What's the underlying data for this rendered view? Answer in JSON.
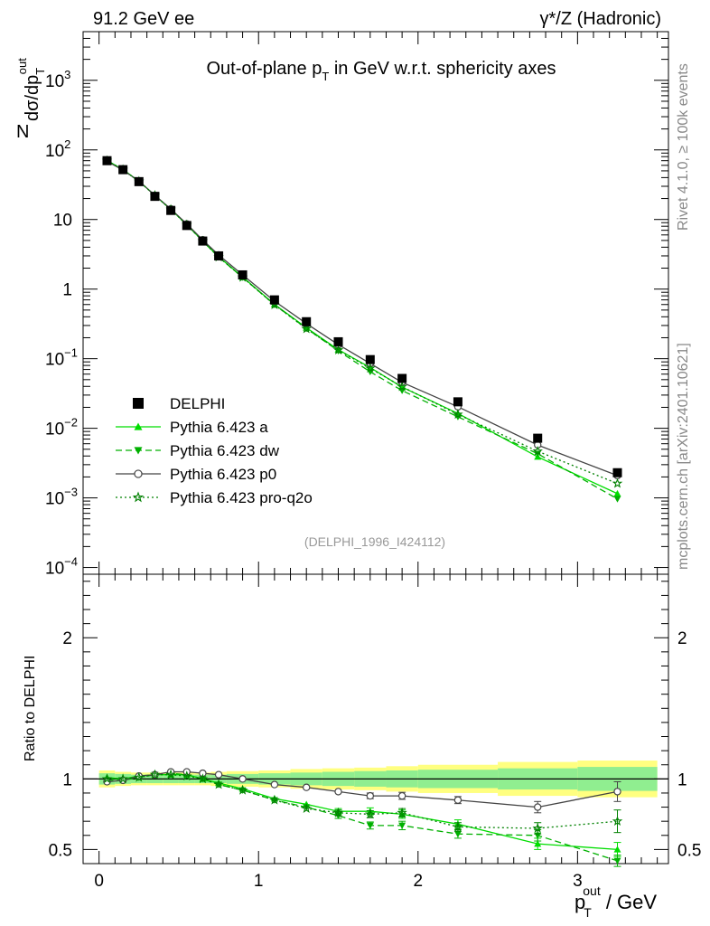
{
  "header": {
    "left": "91.2 GeV ee",
    "right": "γ*/Z (Hadronic)"
  },
  "side": {
    "rivet": "Rivet 4.1.0, ≥ 100k events",
    "mcplots": "mcplots.cern.ch [arXiv:2401.10621]"
  },
  "main": {
    "title_main": "Out-of-plane p",
    "title_sub": "T",
    "title_rest": " in GeV w.r.t. sphericity axes",
    "ylabel_n": "N",
    "ylabel_main": "dσ/dp",
    "ylabel_sub": "T",
    "ylabel_sup": "out",
    "watermark": "(DELPHI_1996_I424112)",
    "ytick_plain": [
      "1",
      "10"
    ],
    "ytick_base": "10",
    "ytick_exps": [
      "−4",
      "−3",
      "−2",
      "−1",
      "2",
      "3"
    ]
  },
  "ratio": {
    "ylabel": "Ratio to DELPHI",
    "ticks": [
      "0.5",
      "1",
      "2"
    ]
  },
  "xaxis": {
    "label_p": "p",
    "label_sub": "T",
    "label_sup": "out",
    "label_rest": " / GeV",
    "ticks": [
      "0",
      "1",
      "2",
      "3"
    ]
  },
  "legend": [
    {
      "label": "DELPHI",
      "marker": "square",
      "color": "#000000"
    },
    {
      "label": "Pythia 6.423 a",
      "marker": "triangle-up",
      "color": "#00dd00"
    },
    {
      "label": "Pythia 6.423 dw",
      "marker": "triangle-down",
      "color": "#00b000"
    },
    {
      "label": "Pythia 6.423 p0",
      "marker": "circle-open",
      "color": "#444444"
    },
    {
      "label": "Pythia 6.423 pro-q2o",
      "marker": "star",
      "color": "#008000"
    }
  ],
  "chart_data": {
    "type": "scatter",
    "title": "Out-of-plane pT in GeV w.r.t. sphericity axes",
    "xlabel": "pT^out / GeV",
    "ylabel": "N dσ/dpT^out",
    "ratio_ylabel": "Ratio to DELPHI",
    "xlim": [
      -0.1,
      3.57
    ],
    "ylim_log": [
      8e-05,
      5000
    ],
    "ratio_ylim": [
      0.4,
      2.45
    ],
    "x": [
      0.05,
      0.15,
      0.25,
      0.35,
      0.45,
      0.55,
      0.65,
      0.75,
      0.9,
      1.1,
      1.3,
      1.5,
      1.7,
      1.9,
      2.25,
      2.75,
      3.25
    ],
    "data": {
      "name": "DELPHI",
      "values": [
        70,
        52,
        35,
        21.5,
        13.5,
        8.2,
        4.9,
        3.0,
        1.6,
        0.7,
        0.34,
        0.175,
        0.097,
        0.052,
        0.024,
        0.0072,
        0.0023
      ]
    },
    "band_edges": [
      0,
      0.1,
      0.2,
      0.3,
      0.4,
      0.5,
      0.6,
      0.7,
      0.8,
      1.0,
      1.2,
      1.4,
      1.6,
      1.8,
      2.0,
      2.5,
      3.0,
      3.5
    ],
    "band_inner": [
      0.04,
      0.035,
      0.03,
      0.03,
      0.03,
      0.03,
      0.03,
      0.03,
      0.035,
      0.04,
      0.045,
      0.05,
      0.055,
      0.06,
      0.065,
      0.075,
      0.085
    ],
    "band_outer": [
      0.06,
      0.05,
      0.045,
      0.045,
      0.045,
      0.045,
      0.045,
      0.05,
      0.055,
      0.06,
      0.07,
      0.075,
      0.08,
      0.09,
      0.1,
      0.12,
      0.13
    ],
    "series": [
      {
        "name": "Pythia 6.423 a",
        "ratio": [
          1.01,
          1.0,
          1.02,
          1.03,
          1.03,
          1.03,
          1.0,
          0.97,
          0.93,
          0.86,
          0.82,
          0.77,
          0.77,
          0.75,
          0.68,
          0.54,
          0.5
        ],
        "ratio_err": [
          0.01,
          0.01,
          0.01,
          0.01,
          0.01,
          0.01,
          0.01,
          0.01,
          0.01,
          0.01,
          0.015,
          0.02,
          0.025,
          0.03,
          0.03,
          0.04,
          0.05
        ]
      },
      {
        "name": "Pythia 6.423 dw",
        "ratio": [
          0.99,
          0.99,
          1.01,
          1.03,
          1.04,
          1.03,
          1.0,
          0.96,
          0.92,
          0.85,
          0.8,
          0.74,
          0.67,
          0.67,
          0.61,
          0.6,
          0.42
        ],
        "ratio_err": [
          0.01,
          0.01,
          0.01,
          0.01,
          0.01,
          0.01,
          0.01,
          0.01,
          0.01,
          0.01,
          0.015,
          0.02,
          0.025,
          0.03,
          0.03,
          0.04,
          0.04
        ]
      },
      {
        "name": "Pythia 6.423 p0",
        "ratio": [
          0.98,
          0.99,
          1.02,
          1.03,
          1.05,
          1.05,
          1.04,
          1.03,
          1.0,
          0.96,
          0.94,
          0.91,
          0.88,
          0.88,
          0.85,
          0.8,
          0.91
        ],
        "ratio_err": [
          0.01,
          0.01,
          0.01,
          0.01,
          0.01,
          0.01,
          0.01,
          0.01,
          0.01,
          0.01,
          0.015,
          0.015,
          0.02,
          0.025,
          0.025,
          0.04,
          0.07
        ]
      },
      {
        "name": "Pythia 6.423 pro-q2o",
        "ratio": [
          1.0,
          1.0,
          1.01,
          1.03,
          1.03,
          1.02,
          1.0,
          0.96,
          0.92,
          0.85,
          0.79,
          0.76,
          0.75,
          0.76,
          0.66,
          0.65,
          0.7
        ],
        "ratio_err": [
          0.01,
          0.01,
          0.01,
          0.01,
          0.01,
          0.01,
          0.01,
          0.01,
          0.01,
          0.01,
          0.015,
          0.02,
          0.025,
          0.03,
          0.03,
          0.04,
          0.08
        ]
      }
    ]
  }
}
